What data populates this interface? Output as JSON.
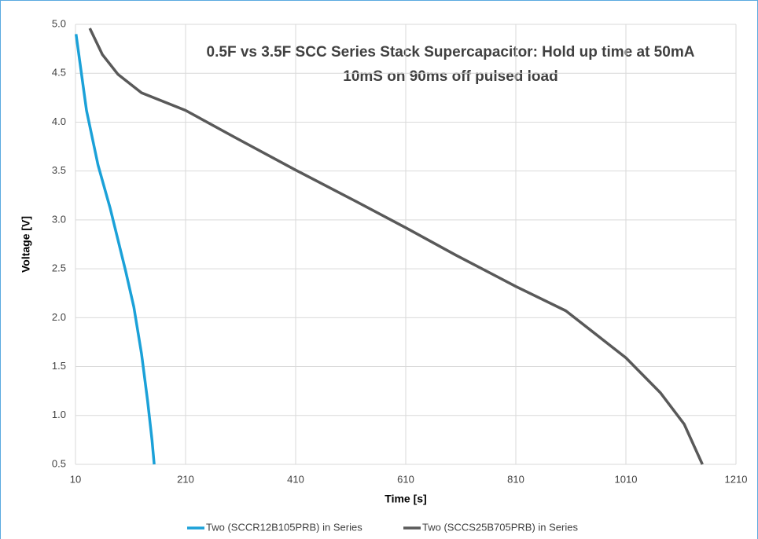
{
  "chart_data": {
    "type": "line",
    "title": "0.5F vs 3.5F SCC Series Stack Supercapacitor: Hold up time at 50mA",
    "subtitle": "10mS on 90ms off pulsed load",
    "x_label": "Time [s]",
    "y_label": "Voltage [V]",
    "xlim": [
      10,
      1210
    ],
    "xticks": [
      10,
      210,
      410,
      610,
      810,
      1010,
      1210
    ],
    "ylim": [
      0.5,
      5
    ],
    "yticks": [
      0.5,
      {
        "value": 1,
        "label": "1.0"
      },
      1.5,
      {
        "value": 2,
        "label": "2.0"
      },
      2.5,
      {
        "value": 3,
        "label": "3.0"
      },
      3.5,
      {
        "value": 4,
        "label": "4.0"
      },
      4.5,
      {
        "value": 5,
        "label": "5.0"
      }
    ],
    "grid": true,
    "legend": "bottom",
    "series": [
      {
        "name": "Two (SCCR12B105PRB) in Series",
        "color": "#1ba1d8",
        "x": [
          11,
          30,
          51,
          73,
          101,
          116,
          130,
          141,
          149,
          153
        ],
        "values": [
          4.9,
          4.12,
          3.56,
          3.12,
          2.48,
          2.11,
          1.63,
          1.15,
          0.75,
          0.5
        ]
      },
      {
        "name": "Two (SCCS25B705PRB) in Series",
        "color": "#595959",
        "x": [
          36,
          59,
          87,
          130,
          210,
          301,
          410,
          516,
          610,
          701,
          810,
          901,
          1010,
          1073,
          1116,
          1149
        ],
        "values": [
          4.96,
          4.69,
          4.49,
          4.3,
          4.12,
          3.84,
          3.51,
          3.2,
          2.92,
          2.64,
          2.32,
          2.07,
          1.59,
          1.23,
          0.91,
          0.5
        ]
      }
    ]
  }
}
